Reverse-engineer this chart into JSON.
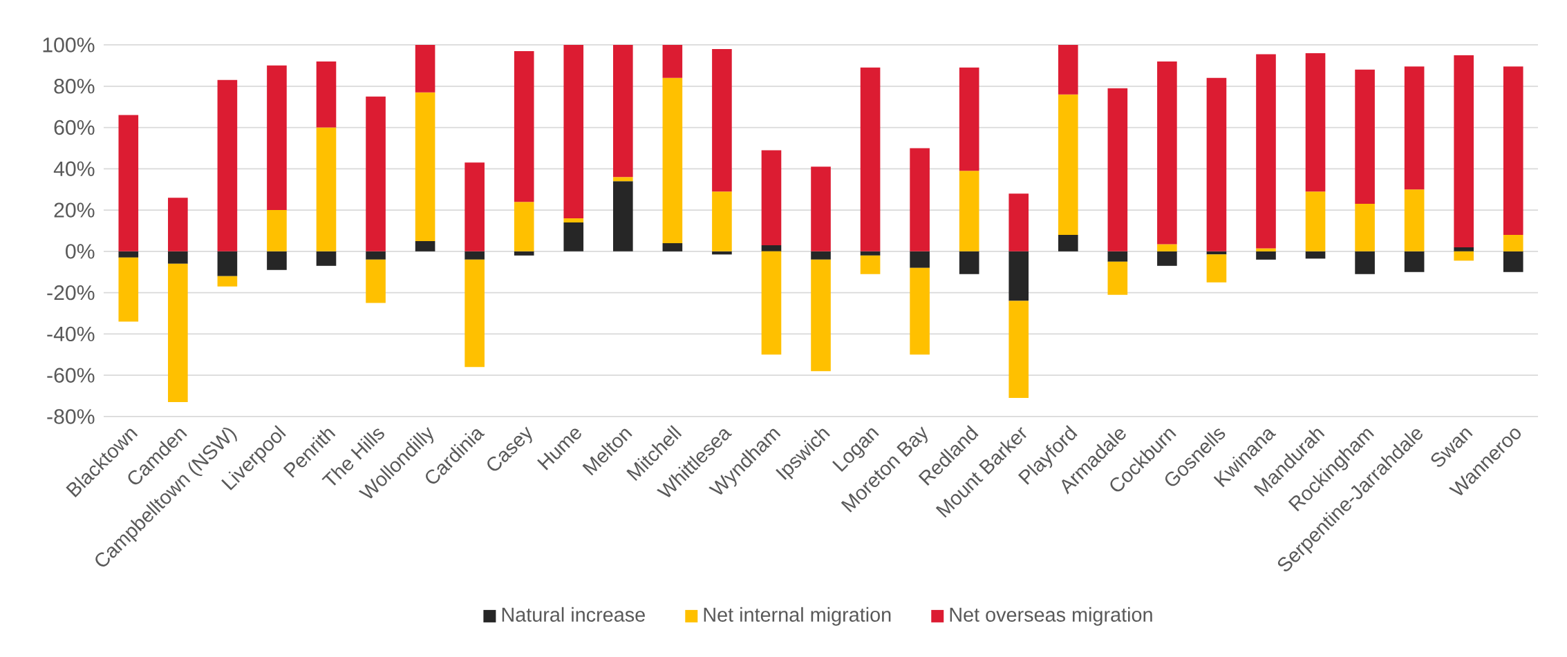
{
  "chart_data": {
    "type": "bar",
    "stacked": true,
    "grid": "y",
    "legend": "bottom",
    "categories": [
      "Blacktown",
      "Camden",
      "Campbelltown (NSW)",
      "Liverpool",
      "Penrith",
      "The Hills",
      "Wollondilly",
      "Cardinia",
      "Casey",
      "Hume",
      "Melton",
      "Mitchell",
      "Whittlesea",
      "Wyndham",
      "Ipswich",
      "Logan",
      "Moreton Bay",
      "Redland",
      "Mount Barker",
      "Playford",
      "Armadale",
      "Cockburn",
      "Gosnells",
      "Kwinana",
      "Mandurah",
      "Rockingham",
      "Serpentine-Jarrahdale",
      "Swan",
      "Wanneroo"
    ],
    "ylim": [
      -80,
      100
    ],
    "yticks": [
      {
        "value": -80,
        "label": "-80%"
      },
      {
        "value": -60,
        "label": "-60%"
      },
      {
        "value": -40,
        "label": "-40%"
      },
      {
        "value": -20,
        "label": "-20%"
      },
      {
        "value": 0,
        "label": "0%"
      },
      {
        "value": 20,
        "label": "20%"
      },
      {
        "value": 40,
        "label": "40%"
      },
      {
        "value": 60,
        "label": "60%"
      },
      {
        "value": 80,
        "label": "80%"
      },
      {
        "value": 100,
        "label": "100%"
      }
    ],
    "series": [
      {
        "name": "Natural increase",
        "color": "#262626",
        "values": [
          -3,
          -6,
          -12,
          -9,
          -7,
          -4,
          5,
          -4,
          -2,
          14,
          34,
          4,
          -1.5,
          3,
          -4,
          -2,
          -8,
          -11,
          -24,
          8,
          -5,
          -7,
          -1.5,
          -4,
          -3.5,
          -11,
          -10,
          2,
          -10
        ]
      },
      {
        "name": "Net internal migration",
        "color": "#ffc000",
        "values": [
          -31,
          -67,
          -5,
          20,
          60,
          -21,
          72,
          -52,
          24,
          2,
          2,
          80,
          29,
          -50,
          -54,
          -9,
          -42,
          39,
          -47,
          68,
          -16,
          3.5,
          -13.5,
          1.5,
          29,
          23,
          30,
          -4.5,
          8
        ]
      },
      {
        "name": "Net overseas migration",
        "color": "#dc1c32",
        "values": [
          66,
          26,
          83,
          70,
          32,
          75,
          23,
          43,
          73,
          84,
          64,
          16,
          69,
          46,
          41,
          89,
          50,
          50,
          28,
          24,
          79,
          88.5,
          84,
          94,
          67,
          65,
          59.5,
          93,
          81.5
        ]
      }
    ]
  }
}
